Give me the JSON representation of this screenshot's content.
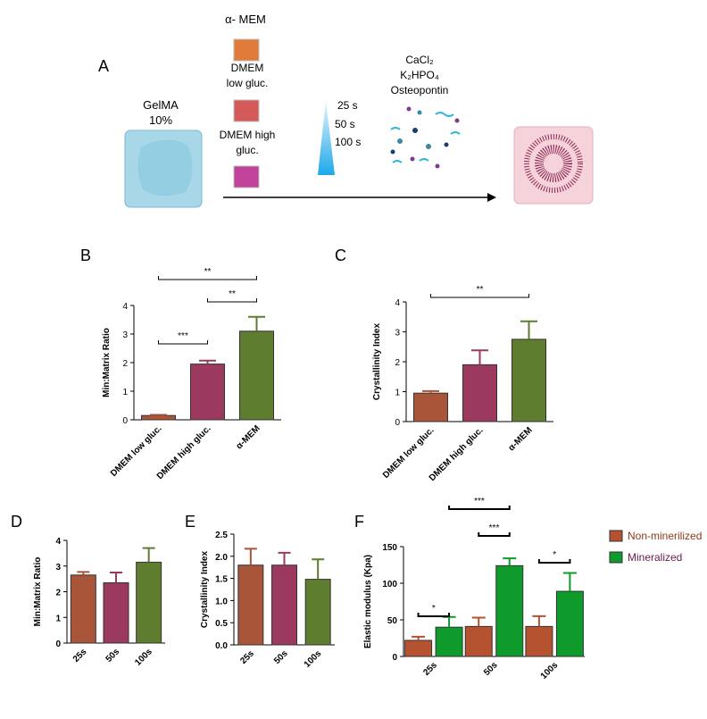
{
  "schematic": {
    "panel": "A",
    "gel": [
      "GelMA",
      "10%"
    ],
    "media": [
      "α- MEM",
      "DMEM",
      "low gluc.",
      "DMEM high",
      "gluc."
    ],
    "times": [
      "25 s",
      "50  s",
      "100  s"
    ],
    "ions": [
      "CaCl₂",
      "K₂HPO₄",
      "Osteopontin"
    ]
  },
  "chart_data": [
    {
      "type": "bar",
      "panel": "B",
      "ylabel": "Min:Matrix Ratio",
      "categories": [
        "DMEM low gluc.",
        "DMEM high gluc.",
        "α-MEM"
      ],
      "values": [
        0.15,
        1.95,
        3.1
      ],
      "errors": [
        0.02,
        0.12,
        0.5
      ],
      "colors": [
        "#a9553a",
        "#9b3a5e",
        "#5e7d2f"
      ],
      "ylim": [
        0,
        4
      ],
      "yticks": [
        0,
        1,
        2,
        3,
        4
      ],
      "annotations": [
        {
          "label": "***",
          "between": [
            "DMEM low gluc.",
            "DMEM high gluc."
          ]
        },
        {
          "label": "**",
          "between": [
            "DMEM high gluc.",
            "α-MEM"
          ]
        },
        {
          "label": "**",
          "between": [
            "DMEM low gluc.",
            "α-MEM"
          ]
        }
      ]
    },
    {
      "type": "bar",
      "panel": "C",
      "ylabel": "Crystallinity Index",
      "categories": [
        "DMEM low gluc.",
        "DMEM high gluc.",
        "α-MEM"
      ],
      "values": [
        0.95,
        1.9,
        2.75
      ],
      "errors": [
        0.07,
        0.48,
        0.6
      ],
      "colors": [
        "#a9553a",
        "#9b3a5e",
        "#5e7d2f"
      ],
      "ylim": [
        0,
        4
      ],
      "yticks": [
        0,
        1,
        2,
        3,
        4
      ],
      "annotations": [
        {
          "label": "**",
          "between": [
            "DMEM low gluc.",
            "α-MEM"
          ]
        }
      ]
    },
    {
      "type": "bar",
      "panel": "D",
      "ylabel": "Min:Matrix Ratio",
      "categories": [
        "25s",
        "50s",
        "100s"
      ],
      "values": [
        2.65,
        2.35,
        3.15
      ],
      "errors": [
        0.12,
        0.4,
        0.55
      ],
      "colors": [
        "#a9553a",
        "#9b3a5e",
        "#5e7d2f"
      ],
      "ylim": [
        0,
        4
      ],
      "yticks": [
        0,
        1,
        2,
        3,
        4
      ],
      "annotations": []
    },
    {
      "type": "bar",
      "panel": "E",
      "ylabel": "Crystallinity Index",
      "categories": [
        "25s",
        "50s",
        "100s"
      ],
      "values": [
        1.8,
        1.8,
        1.48
      ],
      "errors": [
        0.37,
        0.28,
        0.45
      ],
      "colors": [
        "#a9553a",
        "#9b3a5e",
        "#5e7d2f"
      ],
      "ylim": [
        0,
        2.5
      ],
      "yticks": [
        {
          "value": 0,
          "label": "0.0"
        },
        {
          "value": 0.5,
          "label": "0.5"
        },
        {
          "value": 1,
          "label": "1.0"
        },
        {
          "value": 1.5,
          "label": "1.5"
        },
        {
          "value": 2,
          "label": "2.0"
        },
        {
          "value": 2.5,
          "label": "2.5"
        }
      ],
      "annotations": []
    },
    {
      "type": "grouped_bar",
      "panel": "F",
      "ylabel": "Elastic modulus (Kpa)",
      "categories": [
        "25s",
        "50s",
        "100s"
      ],
      "series": [
        {
          "name": "Non-minerilized",
          "color": "#b5522f",
          "text_color": "#8b3a1e",
          "values": [
            22,
            41,
            41
          ],
          "errors": [
            5,
            12,
            14
          ]
        },
        {
          "name": "Mineralized",
          "color": "#0f9a2c",
          "text_color": "#6a1b4d",
          "values": [
            40,
            124,
            89
          ],
          "errors": [
            14,
            10,
            25
          ]
        }
      ],
      "ylim": [
        0,
        150
      ],
      "yticks": [
        0,
        50,
        100,
        150
      ],
      "annotations": [
        {
          "label": "*",
          "between": [
            [
              "25s",
              "Non-minerilized"
            ],
            [
              "25s",
              "Mineralized"
            ]
          ]
        },
        {
          "label": "***",
          "between": [
            [
              "50s",
              "Non-minerilized"
            ],
            [
              "50s",
              "Mineralized"
            ]
          ]
        },
        {
          "label": "***",
          "between": [
            [
              "25s",
              "Mineralized"
            ],
            [
              "50s",
              "Mineralized"
            ]
          ]
        },
        {
          "label": "*",
          "between": [
            [
              "100s",
              "Non-minerilized"
            ],
            [
              "100s",
              "Mineralized"
            ]
          ]
        }
      ]
    }
  ]
}
